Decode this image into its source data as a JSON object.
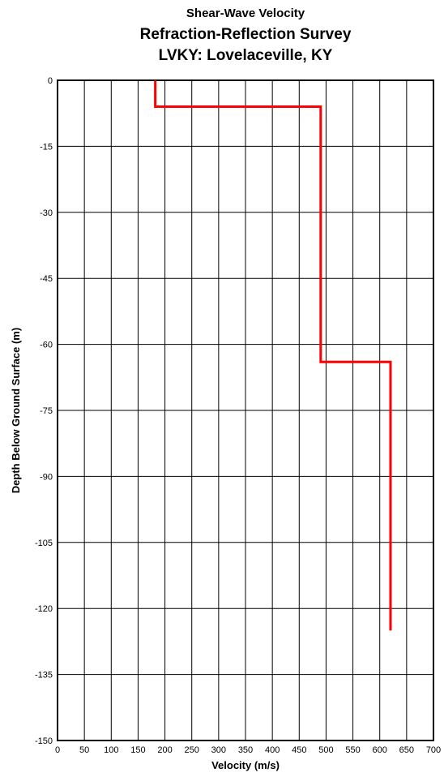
{
  "chart_data": {
    "type": "line",
    "title": "Shear-Wave Velocity",
    "subtitle": "Refraction-Reflection Survey",
    "site": "LVKY: Lovelaceville, KY",
    "x_label": "Velocity (m/s)",
    "y_label": "Depth Below Ground Surface (m)",
    "x": [
      182,
      182,
      490,
      490,
      620,
      620
    ],
    "values": [
      0,
      -6,
      -6,
      -64,
      -64,
      -125
    ],
    "color": "#ff0000",
    "xlim": [
      0,
      700
    ],
    "xticks": [
      0,
      50,
      100,
      150,
      200,
      250,
      300,
      350,
      400,
      450,
      500,
      550,
      600,
      650,
      700
    ],
    "ylim": [
      -150,
      0
    ],
    "yticks": [
      0,
      -15,
      -30,
      -45,
      -60,
      -75,
      -90,
      -105,
      -120,
      -135,
      -150
    ],
    "grid": true
  }
}
